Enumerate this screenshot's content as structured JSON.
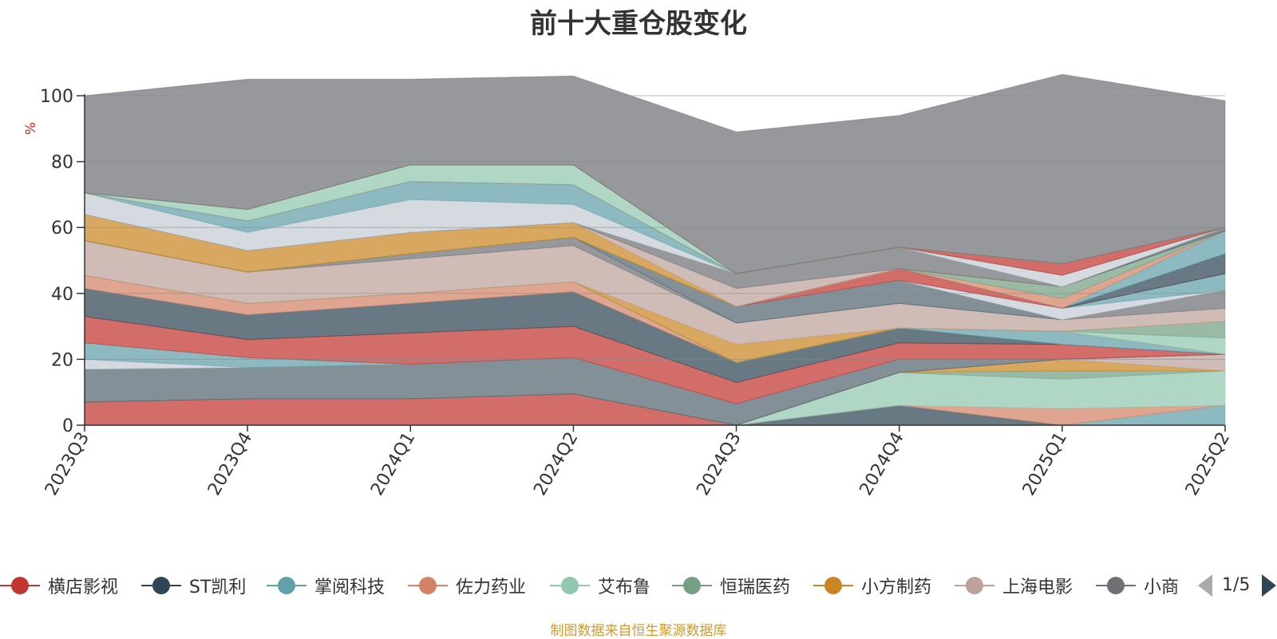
{
  "title": "前十大重仓股变化",
  "source_note": "制图数据来自恒生聚源数据库",
  "legend_pager": {
    "page_text": "1/5"
  },
  "colors": {
    "axis": "#333333",
    "grid": "#7a8a94",
    "ylabel": "#e02020",
    "series": [
      "#c23531",
      "#2f4554",
      "#61a0a8",
      "#d48265",
      "#91c7ae",
      "#749f83",
      "#ca8622",
      "#bda29a",
      "#6e7074",
      "#546570",
      "#c4ccd3",
      "#61a0a8"
    ]
  },
  "chart_data": {
    "type": "area",
    "stacked": true,
    "title": "前十大重仓股变化",
    "ylabel": "%",
    "xlabel": "",
    "ylim": [
      0,
      100
    ],
    "yticks": [
      0,
      20,
      40,
      60,
      80,
      100
    ],
    "grid": true,
    "legend_position": "bottom",
    "categories": [
      "2023Q3",
      "2023Q4",
      "2024Q1",
      "2024Q2",
      "2024Q3",
      "2024Q4",
      "2025Q1",
      "2025Q2"
    ],
    "series": [
      {
        "name": "横店影视",
        "values": [
          7,
          8,
          8,
          9.5,
          0,
          0,
          0,
          0
        ]
      },
      {
        "name": "ST凯利",
        "values": [
          0,
          0,
          0,
          0,
          0,
          6,
          0,
          0
        ]
      },
      {
        "name": "掌阅科技",
        "values": [
          0,
          0,
          0,
          0,
          0,
          0,
          0,
          6
        ]
      },
      {
        "name": "佐力药业",
        "values": [
          0,
          0,
          0,
          0,
          0,
          0,
          5,
          0
        ]
      },
      {
        "name": "艾布鲁",
        "values": [
          0,
          0,
          0,
          0,
          0,
          10,
          9,
          10.5
        ]
      },
      {
        "name": "恒瑞医药",
        "values": [
          0,
          0,
          0,
          0,
          0,
          0,
          2.5,
          0
        ]
      },
      {
        "name": "小方制药",
        "values": [
          0,
          0,
          0,
          0,
          0,
          0,
          3.5,
          0
        ]
      },
      {
        "name": "上海电影",
        "values": [
          0,
          0,
          0,
          0,
          0,
          0,
          0,
          5
        ]
      },
      {
        "name": "小商",
        "values": [
          0,
          0,
          0,
          0,
          0,
          0,
          0,
          0
        ]
      },
      {
        "name": "",
        "values": [
          10,
          9.5,
          10.5,
          11,
          6.5,
          4,
          0,
          0
        ]
      },
      {
        "name": "",
        "values": [
          3,
          0,
          0,
          0,
          0,
          0,
          0,
          0
        ]
      },
      {
        "name": "",
        "values": [
          5,
          3,
          0,
          0,
          0,
          0,
          0,
          0
        ]
      },
      {
        "name": "",
        "values": [
          8,
          5.5,
          9.5,
          9.5,
          6.5,
          5,
          4.5,
          0
        ]
      },
      {
        "name": "",
        "values": [
          8.5,
          7.5,
          9,
          10.5,
          6,
          4.5,
          0,
          0
        ]
      },
      {
        "name": "",
        "values": [
          0,
          0,
          0,
          0,
          0,
          0,
          4,
          0
        ]
      },
      {
        "name": "",
        "values": [
          4,
          3.5,
          3,
          3,
          0,
          0,
          0,
          0
        ]
      },
      {
        "name": "",
        "values": [
          0,
          0,
          0,
          0,
          0,
          0,
          0,
          5
        ]
      },
      {
        "name": "",
        "values": [
          0,
          0,
          0,
          0,
          0,
          0,
          0,
          5
        ]
      },
      {
        "name": "",
        "values": [
          0,
          0,
          0,
          0,
          5.5,
          0,
          0,
          0
        ]
      },
      {
        "name": "",
        "values": [
          10.5,
          9.5,
          10.5,
          11,
          6.5,
          7.5,
          3.5,
          4
        ]
      },
      {
        "name": "",
        "values": [
          0,
          0,
          1.5,
          2.5,
          0,
          0,
          0,
          5.5
        ]
      },
      {
        "name": "",
        "values": [
          0,
          0,
          0,
          0,
          5,
          7,
          0,
          0
        ]
      },
      {
        "name": "",
        "values": [
          0,
          0,
          0,
          0,
          0,
          0,
          3.5,
          0
        ]
      },
      {
        "name": "",
        "values": [
          0,
          0,
          0,
          0,
          0,
          0,
          0,
          5
        ]
      },
      {
        "name": "",
        "values": [
          0,
          0,
          0,
          0,
          0,
          3.5,
          0,
          0
        ]
      },
      {
        "name": "",
        "values": [
          0,
          0,
          0,
          0,
          0,
          0,
          0,
          6
        ]
      },
      {
        "name": "",
        "values": [
          0,
          0,
          0,
          0,
          0,
          0,
          0,
          7
        ]
      },
      {
        "name": "",
        "values": [
          0,
          0,
          0,
          0,
          0,
          0,
          3,
          0
        ]
      },
      {
        "name": "",
        "values": [
          0,
          0,
          0,
          0,
          0,
          0,
          0,
          0
        ]
      },
      {
        "name": "",
        "values": [
          0,
          0,
          0,
          0,
          0,
          0,
          3.5,
          0
        ]
      },
      {
        "name": "",
        "values": [
          8,
          6.5,
          6.5,
          4.5,
          0,
          0,
          0,
          0
        ]
      },
      {
        "name": "",
        "values": [
          0,
          0,
          0,
          0,
          5.5,
          0,
          0,
          0
        ]
      },
      {
        "name": "",
        "values": [
          0,
          0,
          0,
          0,
          4.5,
          6.5,
          0,
          0
        ]
      },
      {
        "name": "",
        "values": [
          0,
          0,
          0,
          0,
          0,
          0,
          0,
          1
        ]
      },
      {
        "name": "",
        "values": [
          6.5,
          5.5,
          10,
          5.5,
          0,
          0,
          3.5,
          0
        ]
      },
      {
        "name": "",
        "values": [
          0,
          3.5,
          5.5,
          6,
          0,
          0,
          0,
          0
        ]
      },
      {
        "name": "",
        "values": [
          0,
          0,
          0,
          0,
          0,
          0,
          3.5,
          0
        ]
      },
      {
        "name": "",
        "values": [
          0,
          0,
          0,
          0,
          0,
          0,
          0,
          0
        ]
      },
      {
        "name": "",
        "values": [
          0,
          0,
          0,
          0,
          0,
          0,
          0,
          0
        ]
      },
      {
        "name": "",
        "values": [
          0,
          0,
          0,
          0,
          0,
          0,
          0,
          0
        ]
      },
      {
        "name": "",
        "values": [
          0,
          3.5,
          5,
          6,
          0,
          0,
          0,
          0
        ]
      },
      {
        "name": "",
        "values": [
          0,
          0,
          0,
          0,
          0,
          0,
          0,
          0
        ]
      },
      {
        "name": "",
        "values": [
          0,
          0,
          0,
          0,
          0,
          0,
          0,
          0
        ]
      },
      {
        "name": "",
        "values": [
          0,
          0,
          0,
          0,
          0,
          0,
          0,
          0
        ]
      },
      {
        "name": "",
        "values": [
          29.5,
          39.5,
          26,
          27,
          43,
          40,
          57.5,
          38.5
        ]
      }
    ]
  }
}
